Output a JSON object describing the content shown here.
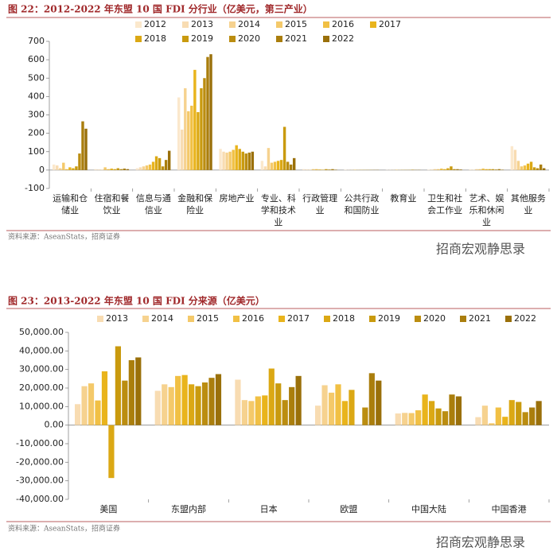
{
  "chart_data": [
    {
      "type": "bar",
      "title": "图 22：2012-2022 年东盟 10 国 FDI 分行业（亿美元，第三产业）",
      "categories": [
        "运输和仓储业",
        "住宿和餐饮业",
        "信息与通信业",
        "金融和保险业",
        "房地产业",
        "专业、科学和技术业",
        "行政管理业",
        "公共行政和国防业",
        "教育业",
        "卫生和社会工作业",
        "艺术、娱乐和休闲业",
        "其他服务业"
      ],
      "series": [
        {
          "name": "2012",
          "color": "#fbe8cc",
          "values": [
            30,
            5,
            10,
            395,
            115,
            50,
            5,
            2,
            1,
            2,
            3,
            130
          ]
        },
        {
          "name": "2013",
          "color": "#f8dcb2",
          "values": [
            25,
            3,
            15,
            220,
            100,
            20,
            3,
            1,
            1,
            3,
            2,
            110
          ]
        },
        {
          "name": "2014",
          "color": "#f6d28f",
          "values": [
            10,
            2,
            20,
            445,
            95,
            120,
            2,
            1,
            1,
            5,
            5,
            50
          ]
        },
        {
          "name": "2015",
          "color": "#f4c96a",
          "values": [
            40,
            15,
            25,
            320,
            100,
            40,
            5,
            2,
            2,
            5,
            5,
            20
          ]
        },
        {
          "name": "2016",
          "color": "#f1c044",
          "values": [
            5,
            5,
            30,
            350,
            110,
            45,
            5,
            1,
            1,
            8,
            8,
            25
          ]
        },
        {
          "name": "2017",
          "color": "#e9b41c",
          "values": [
            15,
            8,
            45,
            545,
            135,
            50,
            3,
            1,
            1,
            5,
            5,
            35
          ]
        },
        {
          "name": "2018",
          "color": "#dba814",
          "values": [
            10,
            5,
            75,
            315,
            115,
            55,
            2,
            1,
            1,
            10,
            5,
            45
          ]
        },
        {
          "name": "2019",
          "color": "#c99a0e",
          "values": [
            20,
            10,
            65,
            445,
            100,
            235,
            5,
            1,
            1,
            20,
            5,
            15
          ]
        },
        {
          "name": "2020",
          "color": "#bb8d10",
          "values": [
            90,
            5,
            20,
            500,
            90,
            45,
            3,
            1,
            2,
            5,
            3,
            10
          ]
        },
        {
          "name": "2021",
          "color": "#aa7e0d",
          "values": [
            265,
            8,
            55,
            615,
            95,
            30,
            5,
            1,
            1,
            5,
            5,
            30
          ]
        },
        {
          "name": "2022",
          "color": "#9a700a",
          "values": [
            225,
            5,
            105,
            630,
            100,
            65,
            2,
            1,
            1,
            3,
            2,
            10
          ]
        }
      ],
      "ylim": [
        -100,
        700
      ],
      "yticks": [
        -100,
        0,
        100,
        200,
        300,
        400,
        500,
        600,
        700
      ]
    },
    {
      "type": "bar",
      "title": "图 23：2013-2022 年东盟 10 国 FDI 分来源（亿美元）",
      "categories": [
        "美国",
        "东盟内部",
        "日本",
        "欧盟",
        "中国大陆",
        "中国香港"
      ],
      "series": [
        {
          "name": "2013",
          "color": "#f8dcb2",
          "values": [
            11300,
            18500,
            24500,
            10500,
            6300,
            4300
          ]
        },
        {
          "name": "2014",
          "color": "#f6d28f",
          "values": [
            21000,
            22000,
            13500,
            21500,
            6600,
            10500
          ]
        },
        {
          "name": "2015",
          "color": "#f4c96a",
          "values": [
            22500,
            20500,
            13000,
            17500,
            6500,
            1000
          ]
        },
        {
          "name": "2016",
          "color": "#f1c044",
          "values": [
            13300,
            26500,
            15500,
            22000,
            8000,
            9500
          ]
        },
        {
          "name": "2017",
          "color": "#e9b41c",
          "values": [
            29000,
            27000,
            16000,
            13000,
            16500,
            4500
          ]
        },
        {
          "name": "2018",
          "color": "#dba814",
          "values": [
            -28500,
            22000,
            30500,
            19000,
            13000,
            13500
          ]
        },
        {
          "name": "2019",
          "color": "#c99a0e",
          "values": [
            42500,
            21000,
            22500,
            null,
            9000,
            12500
          ]
        },
        {
          "name": "2020",
          "color": "#bb8d10",
          "values": [
            24000,
            23000,
            13500,
            9500,
            7500,
            7000
          ]
        },
        {
          "name": "2021",
          "color": "#aa7e0d",
          "values": [
            35000,
            25500,
            20500,
            28000,
            16500,
            9500
          ]
        },
        {
          "name": "2022",
          "color": "#9a700a",
          "values": [
            36500,
            27500,
            26500,
            24000,
            15500,
            13000
          ]
        }
      ],
      "ylim": [
        -40000,
        50000
      ],
      "yticks": [
        {
          "value": -40000,
          "label": "-40,000.00"
        },
        {
          "value": -30000,
          "label": "-30,000.00"
        },
        {
          "value": -20000,
          "label": "-20,000.00"
        },
        {
          "value": -10000,
          "label": "-10,000.00"
        },
        {
          "value": 0,
          "label": "0.00"
        },
        {
          "value": 10000,
          "label": "10,000.00"
        },
        {
          "value": 20000,
          "label": "20,000.00"
        },
        {
          "value": 30000,
          "label": "30,000.00"
        },
        {
          "value": 40000,
          "label": "40,000.00"
        },
        {
          "value": 50000,
          "label": "50,000.00"
        }
      ]
    }
  ],
  "sources": [
    "资料来源：AseanStats，招商证券",
    "资料来源：AseanStats，招商证券"
  ],
  "watermarks": [
    "招商宏观静思录",
    "招商宏观静思录"
  ]
}
